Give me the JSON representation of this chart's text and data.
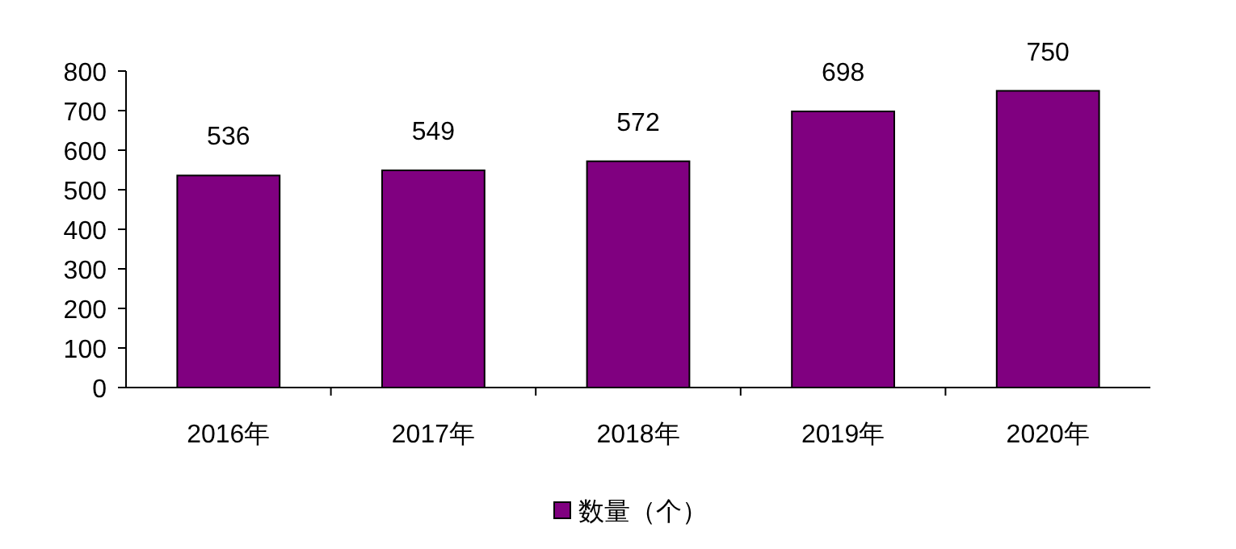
{
  "chart_data": {
    "type": "bar",
    "categories": [
      "2016年",
      "2017年",
      "2018年",
      "2019年",
      "2020年"
    ],
    "series": [
      {
        "name": "数量（个）",
        "color": "#800080",
        "values": [
          536,
          549,
          572,
          698,
          750
        ]
      }
    ],
    "ylim": [
      0,
      800
    ],
    "yticks": [
      0,
      100,
      200,
      300,
      400,
      500,
      600,
      700,
      800
    ],
    "data_labels": true,
    "legend": "bottom"
  }
}
